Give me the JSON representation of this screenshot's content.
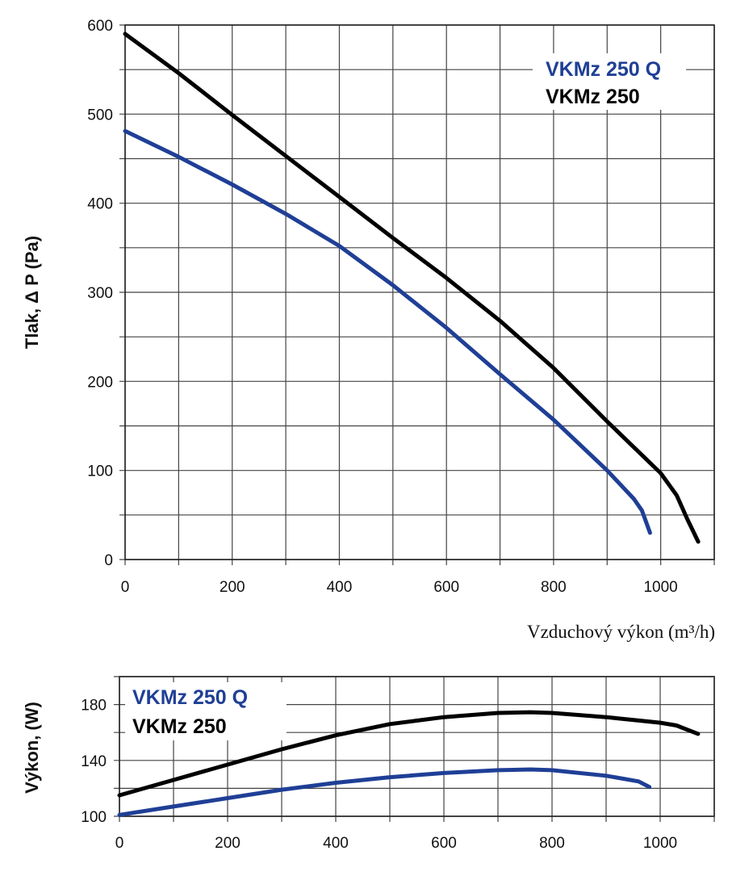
{
  "colors": {
    "series_q": "#1f3f96",
    "series_std": "#000000",
    "grid": "#333333"
  },
  "chart_data": [
    {
      "type": "line",
      "title": "",
      "xlabel": "Vzduchový výkon (m³/h)",
      "ylabel": "Tlak, Δ P (Pa)",
      "xlim": [
        0,
        1100
      ],
      "ylim": [
        0,
        600
      ],
      "xticks": [
        0,
        200,
        400,
        600,
        800,
        1000
      ],
      "yticks": [
        0,
        100,
        200,
        300,
        400,
        500,
        600
      ],
      "grid": true,
      "legend_position": "top-right",
      "series": [
        {
          "name": "VKMz 250 Q",
          "color": "#1f3f96",
          "x": [
            0,
            100,
            200,
            300,
            400,
            500,
            600,
            700,
            800,
            900,
            950,
            965,
            980
          ],
          "y": [
            481,
            452,
            421,
            388,
            352,
            308,
            260,
            208,
            157,
            100,
            68,
            55,
            30
          ]
        },
        {
          "name": "VKMz 250",
          "color": "#000000",
          "x": [
            0,
            100,
            200,
            300,
            400,
            500,
            600,
            700,
            800,
            900,
            1000,
            1030,
            1050,
            1070
          ],
          "y": [
            590,
            546,
            499,
            453,
            407,
            361,
            316,
            268,
            215,
            155,
            97,
            72,
            45,
            20
          ]
        }
      ]
    },
    {
      "type": "line",
      "title": "",
      "xlabel": "",
      "ylabel": "Výkon, (W)",
      "xlim": [
        0,
        1100
      ],
      "ylim": [
        100,
        200
      ],
      "xticks": [
        0,
        200,
        400,
        600,
        800,
        1000
      ],
      "yticks": [
        100,
        140,
        180
      ],
      "grid": true,
      "legend_position": "top-left",
      "series": [
        {
          "name": "VKMz 250 Q",
          "color": "#1f3f96",
          "x": [
            0,
            100,
            200,
            300,
            400,
            500,
            600,
            700,
            760,
            800,
            900,
            960,
            980
          ],
          "y": [
            101,
            107,
            113,
            119,
            124,
            128,
            131,
            133,
            133.5,
            133,
            129,
            125,
            121
          ]
        },
        {
          "name": "VKMz 250",
          "color": "#000000",
          "x": [
            0,
            100,
            200,
            300,
            400,
            500,
            600,
            700,
            760,
            800,
            900,
            1000,
            1030,
            1070
          ],
          "y": [
            115,
            126,
            137,
            148,
            158,
            166,
            171,
            174,
            174.5,
            174,
            171,
            167,
            165,
            159
          ]
        }
      ]
    }
  ]
}
